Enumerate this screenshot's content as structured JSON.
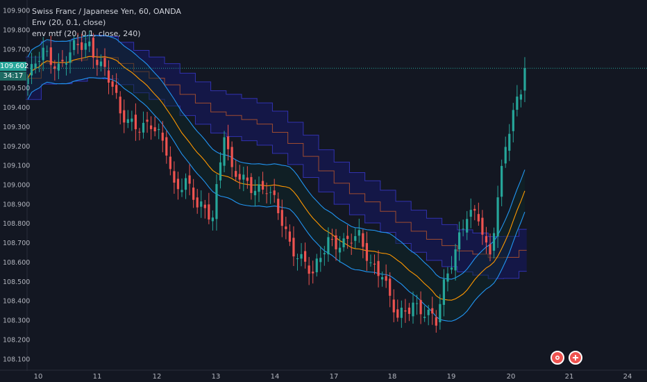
{
  "legend": {
    "title": "Swiss Franc / Japanese Yen, 60, OANDA",
    "ind1": "Env (20, 0.1, close)",
    "ind2": "env mtf (20, 0.1, close, 240)"
  },
  "price_tags": {
    "last_price": "109.602",
    "countdown": "34:17"
  },
  "colors": {
    "background": "#131722",
    "up_candle": "#26a69a",
    "down_candle": "#ef5350",
    "envelope_band": "#2196f3",
    "envelope_basis": "#ff9800",
    "mtf_band": "#1a1aa8",
    "last_price": "#26a69a"
  },
  "icons": {
    "ideas": "ideas-icon",
    "plus": "plus-icon"
  },
  "chart_data": {
    "type": "line",
    "title": "Swiss Franc / Japanese Yen, 60, OANDA",
    "x_ticks": [
      "10",
      "11",
      "12",
      "13",
      "14",
      "17",
      "18",
      "19",
      "20",
      "21",
      "24"
    ],
    "y_ticks": [
      "109.900",
      "109.800",
      "109.700",
      "109.500",
      "109.400",
      "109.300",
      "109.200",
      "109.100",
      "109.000",
      "108.900",
      "108.800",
      "108.700",
      "108.600",
      "108.500",
      "108.400",
      "108.300",
      "108.200",
      "108.100"
    ],
    "ylim": [
      108.06,
      109.94
    ],
    "last_price": 109.602,
    "close_path": [
      [
        0,
        109.55
      ],
      [
        4,
        109.68
      ],
      [
        8,
        109.62
      ],
      [
        12,
        109.7
      ],
      [
        16,
        109.72
      ],
      [
        20,
        109.6
      ],
      [
        22,
        109.5
      ],
      [
        24,
        109.35
      ],
      [
        28,
        109.32
      ],
      [
        32,
        109.3
      ],
      [
        36,
        109.18
      ],
      [
        38,
        109.0
      ],
      [
        41,
        109.02
      ],
      [
        44,
        108.88
      ],
      [
        48,
        108.85
      ],
      [
        51,
        109.28
      ],
      [
        53,
        109.05
      ],
      [
        58,
        109.0
      ],
      [
        62,
        108.98
      ],
      [
        64,
        108.9
      ],
      [
        68,
        108.7
      ],
      [
        72,
        108.6
      ],
      [
        74,
        108.52
      ],
      [
        78,
        108.72
      ],
      [
        82,
        108.7
      ],
      [
        86,
        108.72
      ],
      [
        89,
        108.6
      ],
      [
        92,
        108.55
      ],
      [
        94,
        108.4
      ],
      [
        96,
        108.3
      ],
      [
        100,
        108.4
      ],
      [
        104,
        108.32
      ],
      [
        106,
        108.28
      ],
      [
        108,
        108.48
      ],
      [
        110,
        108.62
      ],
      [
        112,
        108.74
      ],
      [
        114,
        108.84
      ],
      [
        117,
        108.82
      ],
      [
        119,
        108.68
      ],
      [
        120,
        108.65
      ],
      [
        122,
        108.95
      ],
      [
        124,
        109.2
      ],
      [
        126,
        109.35
      ],
      [
        128,
        109.48
      ],
      [
        129,
        109.6
      ]
    ],
    "series": [
      {
        "kind": "candles",
        "values": "derived from close_path"
      },
      {
        "kind": "envelope",
        "values": "Env band: basis ± 0.1%"
      },
      {
        "kind": "envelope_mtf",
        "values": "env mtf band: 240-minute basis ± 0.1%"
      }
    ],
    "grid": false
  }
}
